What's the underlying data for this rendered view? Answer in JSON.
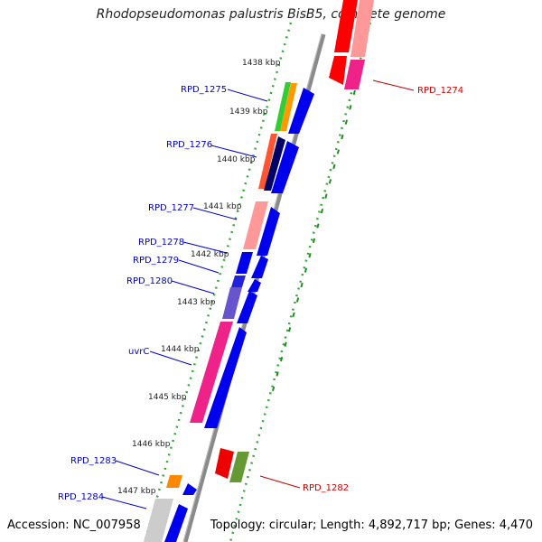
{
  "title": "Rhodopseudomonas palustris BisB5, complete genome",
  "accession_text": "Accession: NC_007958",
  "topology_text": "Topology: circular; Length: 4,892,717 bp; Genes: 4,470",
  "ticks": [
    "1438 kbp",
    "1439 kbp",
    "1440 kbp",
    "1441 kbp",
    "1442 kbp",
    "1443 kbp",
    "1444 kbp",
    "1445 kbp",
    "1446 kbp",
    "1447 kbp"
  ],
  "labels_left": [
    "RPD_1275",
    "RPD_1276",
    "RPD_1277",
    "RPD_1278",
    "RPD_1279",
    "RPD_1280",
    "uvrC",
    "RPD_1283",
    "RPD_1284"
  ],
  "labels_right": [
    "RPD_1274",
    "RPD_1282"
  ],
  "colors": {
    "label_blue": "#0000cc",
    "label_red": "#cc0000",
    "tick_green": "#339933",
    "backbone": "#888888"
  }
}
